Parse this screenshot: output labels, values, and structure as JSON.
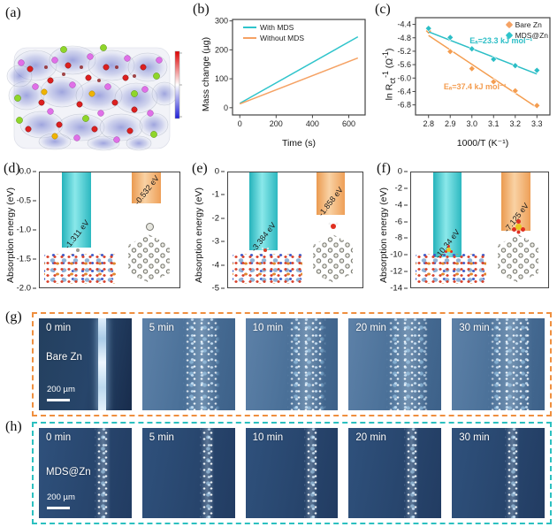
{
  "letters": {
    "a": "(a)",
    "b": "(b)",
    "c": "(c)",
    "d": "(d)",
    "e": "(e)",
    "f": "(f)",
    "g": "(g)",
    "h": "(h)"
  },
  "colors": {
    "cyan": "#2fc4cb",
    "orange": "#f5a264",
    "orange_border": "#ef8f3f",
    "teal_border": "#2cc0c0"
  },
  "chart_data": {
    "b": {
      "type": "line",
      "xlabel": "Time (s)",
      "ylabel": "Mass change (µg)",
      "xlim": [
        -40,
        690
      ],
      "ylim": [
        -25,
        305
      ],
      "xticks": [
        "0",
        "200",
        "400",
        "600"
      ],
      "yticks": [
        "0",
        "100",
        "200",
        "300"
      ],
      "legend_position": "top-left",
      "grid": false,
      "series": [
        {
          "name": "With MDS",
          "color": "#2fc4cb",
          "line": [
            [
              0,
              15
            ],
            [
              650,
              245
            ]
          ]
        },
        {
          "name": "Without MDS",
          "color": "#f5a264",
          "line": [
            [
              0,
              13
            ],
            [
              650,
              172
            ]
          ]
        }
      ]
    },
    "c": {
      "type": "scatter",
      "xlabel": "1000/T (K⁻¹)",
      "ylabel_parts": {
        "p1": "ln R",
        "sub": "ct",
        "sup1": "-1",
        "p2": " (Ω",
        "sup2": "-1",
        "p3": ")"
      },
      "xlim": [
        2.74,
        3.36
      ],
      "ylim": [
        -7.1,
        -4.2
      ],
      "xticks": [
        "2.8",
        "2.9",
        "3.0",
        "3.1",
        "3.2",
        "3.3"
      ],
      "yticks": [
        "-4.4",
        "-4.8",
        "-5.2",
        "-5.6",
        "-6.0",
        "-6.4",
        "-6.8"
      ],
      "legend_position": "top-right",
      "grid": false,
      "series": [
        {
          "name": "Bare Zn",
          "color": "#f49d50",
          "points": [
            [
              2.8,
              -4.6
            ],
            [
              2.9,
              -5.21
            ],
            [
              3.0,
              -5.72
            ],
            [
              3.1,
              -6.11
            ],
            [
              3.2,
              -6.38
            ],
            [
              3.3,
              -6.82
            ]
          ],
          "line": [
            [
              2.8,
              -4.73
            ],
            [
              3.3,
              -6.88
            ]
          ]
        },
        {
          "name": "MDS@Zn",
          "color": "#2bbec6",
          "points": [
            [
              2.8,
              -4.52
            ],
            [
              2.9,
              -4.79
            ],
            [
              3.0,
              -5.13
            ],
            [
              3.1,
              -5.44
            ],
            [
              3.2,
              -5.63
            ],
            [
              3.3,
              -5.77
            ]
          ],
          "line": [
            [
              2.8,
              -4.62
            ],
            [
              3.3,
              -5.88
            ]
          ]
        }
      ],
      "annotations": [
        {
          "text": "Eₐ=23.3 kJ mol⁻¹",
          "x": 2.99,
          "y": -4.97,
          "color": "#2bbec6"
        },
        {
          "text": "Eₐ=37.4 kJ mol⁻¹",
          "x": 2.87,
          "y": -6.33,
          "color": "#f49d50"
        }
      ]
    },
    "d": {
      "type": "bar",
      "ylabel": "Absorption energy (eV)",
      "ylim": [
        0,
        -2
      ],
      "yticks": [
        "0.0",
        "-0.5",
        "-1.0",
        "-1.5",
        "-2.0"
      ],
      "bars": [
        {
          "label": "-1.311 eV",
          "value": -1.311,
          "color": "#2fc4cb"
        },
        {
          "label": "-0.532 eV",
          "value": -0.532,
          "color": "#f5a264"
        }
      ]
    },
    "e": {
      "type": "bar",
      "ylabel": "Absorption energy (eV)",
      "ylim": [
        0,
        -5
      ],
      "yticks": [
        "0",
        "-1",
        "-2",
        "-3",
        "-4",
        "-5"
      ],
      "bars": [
        {
          "label": "-3.384 eV",
          "value": -3.384,
          "color": "#2fc4cb"
        },
        {
          "label": "-1.858 eV",
          "value": -1.858,
          "color": "#f5a264"
        }
      ]
    },
    "f": {
      "type": "bar",
      "ylabel": "Absorption energy (eV)",
      "ylim": [
        0,
        -14
      ],
      "yticks": [
        "0",
        "-2",
        "-4",
        "-6",
        "-8",
        "-10",
        "-12",
        "-14"
      ],
      "bars": [
        {
          "label": "-10.34 eV",
          "value": -10.34,
          "color": "#2fc4cb"
        },
        {
          "label": "-7.125 eV",
          "value": -7.125,
          "color": "#f5a264"
        }
      ]
    }
  },
  "micro": {
    "g": {
      "sample": "Bare Zn",
      "scalebar": "200 µm",
      "border_color": "#ef8f3f",
      "times": [
        "0 min",
        "5 min",
        "10 min",
        "20 min",
        "30 min"
      ]
    },
    "h": {
      "sample": "MDS@Zn",
      "scalebar": "200 µm",
      "border_color": "#2cc0c0",
      "times": [
        "0 min",
        "5 min",
        "10 min",
        "20 min",
        "30 min"
      ]
    }
  }
}
